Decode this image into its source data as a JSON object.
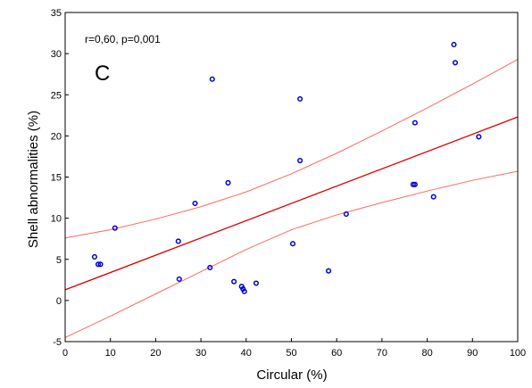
{
  "chart_data": {
    "type": "scatter",
    "xlabel": "Circular (%)",
    "ylabel": "Shell abnormalities (%)",
    "xlim": [
      0,
      100
    ],
    "ylim": [
      -5,
      35
    ],
    "xticks": [
      0,
      10,
      20,
      30,
      40,
      50,
      60,
      70,
      80,
      90,
      100
    ],
    "yticks": [
      -5,
      0,
      5,
      10,
      15,
      20,
      25,
      30,
      35
    ],
    "grid": false,
    "annotation": "r=0,60, p=0,001",
    "panel_label": "C",
    "colors": {
      "points": "#0000cc",
      "fit_line": "#dd0000",
      "ci_lines": "#ff6666",
      "axes": "#000000"
    },
    "points": [
      {
        "x": 6.5,
        "y": 5.3
      },
      {
        "x": 7.3,
        "y": 4.4
      },
      {
        "x": 7.8,
        "y": 4.4
      },
      {
        "x": 11.0,
        "y": 8.8
      },
      {
        "x": 25.0,
        "y": 7.2
      },
      {
        "x": 25.2,
        "y": 2.6
      },
      {
        "x": 28.7,
        "y": 11.8
      },
      {
        "x": 32.0,
        "y": 4.0
      },
      {
        "x": 32.5,
        "y": 26.9
      },
      {
        "x": 36.0,
        "y": 14.3
      },
      {
        "x": 37.3,
        "y": 2.3
      },
      {
        "x": 39.0,
        "y": 1.7
      },
      {
        "x": 39.3,
        "y": 1.4
      },
      {
        "x": 39.6,
        "y": 1.1
      },
      {
        "x": 42.2,
        "y": 2.1
      },
      {
        "x": 50.3,
        "y": 6.9
      },
      {
        "x": 51.9,
        "y": 24.5
      },
      {
        "x": 51.9,
        "y": 17.0
      },
      {
        "x": 58.2,
        "y": 3.6
      },
      {
        "x": 62.1,
        "y": 10.5
      },
      {
        "x": 76.9,
        "y": 14.1
      },
      {
        "x": 77.3,
        "y": 14.1
      },
      {
        "x": 77.3,
        "y": 21.6
      },
      {
        "x": 81.4,
        "y": 12.6
      },
      {
        "x": 85.9,
        "y": 31.1
      },
      {
        "x": 86.2,
        "y": 28.9
      },
      {
        "x": 91.4,
        "y": 19.9
      }
    ],
    "fit": {
      "intercept": 1.3,
      "slope": 0.21
    },
    "ci_upper": [
      {
        "x": 0,
        "y": 7.6
      },
      {
        "x": 10,
        "y": 8.6
      },
      {
        "x": 20,
        "y": 9.9
      },
      {
        "x": 30,
        "y": 11.4
      },
      {
        "x": 40,
        "y": 13.2
      },
      {
        "x": 50,
        "y": 15.4
      },
      {
        "x": 60,
        "y": 17.9
      },
      {
        "x": 70,
        "y": 20.6
      },
      {
        "x": 80,
        "y": 23.4
      },
      {
        "x": 90,
        "y": 26.3
      },
      {
        "x": 100,
        "y": 29.3
      }
    ],
    "ci_lower": [
      {
        "x": 0,
        "y": -4.5
      },
      {
        "x": 10,
        "y": -1.9
      },
      {
        "x": 20,
        "y": 0.8
      },
      {
        "x": 30,
        "y": 3.5
      },
      {
        "x": 40,
        "y": 6.2
      },
      {
        "x": 50,
        "y": 8.6
      },
      {
        "x": 60,
        "y": 10.4
      },
      {
        "x": 70,
        "y": 11.9
      },
      {
        "x": 80,
        "y": 13.3
      },
      {
        "x": 90,
        "y": 14.6
      },
      {
        "x": 100,
        "y": 15.7
      }
    ]
  }
}
